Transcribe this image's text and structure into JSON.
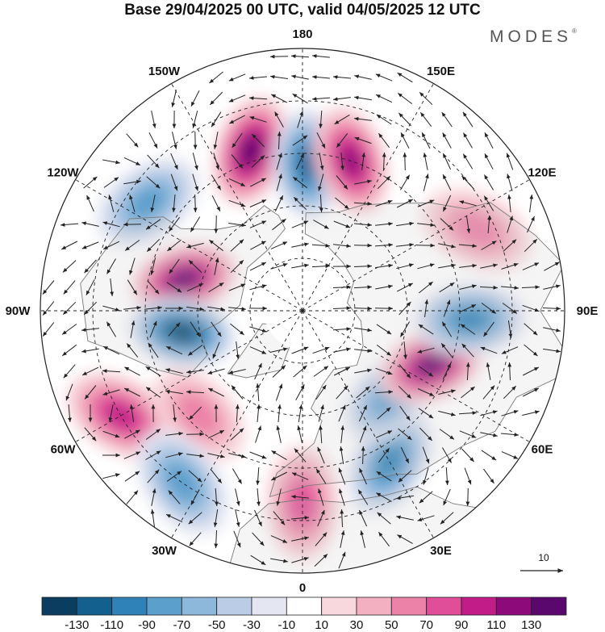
{
  "header": {
    "title": "Base 29/04/2025 00 UTC, valid 04/05/2025 12 UTC",
    "brand": "MODES",
    "brand_mark": "®"
  },
  "map": {
    "projection": "north-polar-stereographic",
    "longitude_labels": [
      {
        "name": "lon-180",
        "text": "180",
        "lon": 180
      },
      {
        "name": "lon-150e",
        "text": "150E",
        "lon": 150
      },
      {
        "name": "lon-120e",
        "text": "120E",
        "lon": 120
      },
      {
        "name": "lon-90e",
        "text": "90E",
        "lon": 90
      },
      {
        "name": "lon-60e",
        "text": "60E",
        "lon": 60
      },
      {
        "name": "lon-30e",
        "text": "30E",
        "lon": 30
      },
      {
        "name": "lon-0",
        "text": "0",
        "lon": 0
      },
      {
        "name": "lon-30w",
        "text": "30W",
        "lon": -30
      },
      {
        "name": "lon-60w",
        "text": "60W",
        "lon": -60
      },
      {
        "name": "lon-90w",
        "text": "90W",
        "lon": -90
      },
      {
        "name": "lon-120w",
        "text": "120W",
        "lon": -120
      },
      {
        "name": "lon-150w",
        "text": "150W",
        "lon": -150
      }
    ],
    "latitude_circles": [
      30,
      45,
      60,
      75
    ],
    "anomalies": [
      {
        "name": "anomaly-1",
        "lon": -162,
        "lat": 42,
        "value": 115
      },
      {
        "name": "anomaly-2",
        "lon": 178,
        "lat": 48,
        "value": -105
      },
      {
        "name": "anomaly-3",
        "lon": 162,
        "lat": 45,
        "value": 95
      },
      {
        "name": "anomaly-4",
        "lon": 115,
        "lat": 35,
        "value": 50
      },
      {
        "name": "anomaly-5",
        "lon": -125,
        "lat": 36,
        "value": -70
      },
      {
        "name": "anomaly-6",
        "lon": -105,
        "lat": 55,
        "value": 115
      },
      {
        "name": "anomaly-7",
        "lon": -80,
        "lat": 55,
        "value": -125
      },
      {
        "name": "anomaly-8",
        "lon": -60,
        "lat": 30,
        "value": 75
      },
      {
        "name": "anomaly-9",
        "lon": -45,
        "lat": 48,
        "value": 50
      },
      {
        "name": "anomaly-10",
        "lon": -35,
        "lat": 30,
        "value": -65
      },
      {
        "name": "anomaly-11",
        "lon": 0,
        "lat": 35,
        "value": 65
      },
      {
        "name": "anomaly-12",
        "lon": 30,
        "lat": 40,
        "value": -80
      },
      {
        "name": "anomaly-13",
        "lon": 45,
        "lat": 55,
        "value": -65
      },
      {
        "name": "anomaly-14",
        "lon": 67,
        "lat": 50,
        "value": 120
      },
      {
        "name": "anomaly-15",
        "lon": 87,
        "lat": 42,
        "value": -85
      }
    ],
    "vector_reference_label": "10"
  },
  "legend": {
    "levels": [
      -130,
      -110,
      -90,
      -70,
      -50,
      -30,
      -10,
      10,
      30,
      50,
      70,
      90,
      110,
      130
    ],
    "tick_labels": [
      "-130",
      "-110",
      "-90",
      "-70",
      "-50",
      "-30",
      "-10",
      "10",
      "30",
      "50",
      "70",
      "90",
      "110",
      "130"
    ],
    "colors": [
      "#0b3d61",
      "#13608f",
      "#2e82b8",
      "#5b9fcc",
      "#8db8dc",
      "#bbcde6",
      "#e4e6f2",
      "#ffffff",
      "#f8d7dd",
      "#f2b0c0",
      "#ec82a8",
      "#e04d99",
      "#c21c88",
      "#8c0a7a",
      "#5a086e"
    ]
  }
}
